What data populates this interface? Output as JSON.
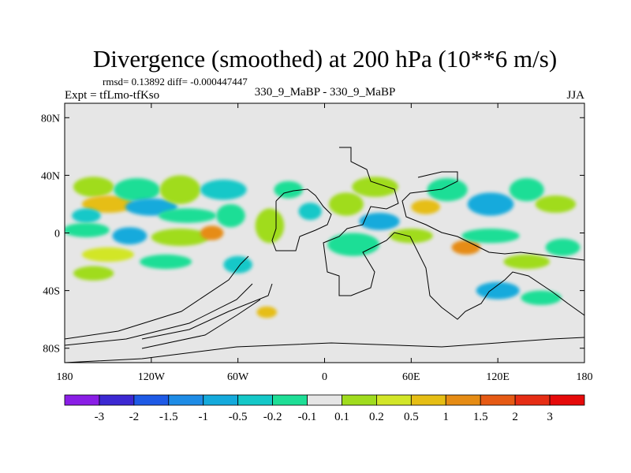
{
  "chart_data": {
    "type": "heatmap",
    "title": "Divergence (smoothed) at 200 hPa (10**6 m/s)",
    "stats": "rmsd= 0.13892 diff= -0.000447447",
    "experiment": "Expt = tfLmo-tfKso",
    "comparison": "330_9_MaBP - 330_9_MaBP",
    "season": "JJA",
    "x_ticks": [
      "180",
      "120W",
      "60W",
      "0",
      "60E",
      "120E",
      "180"
    ],
    "x_values": [
      -180,
      -120,
      -60,
      0,
      60,
      120,
      180
    ],
    "y_ticks": [
      "80N",
      "40N",
      "0",
      "40S",
      "80S"
    ],
    "y_values": [
      80,
      40,
      0,
      -40,
      -80
    ],
    "xlim": [
      -180,
      180
    ],
    "ylim": [
      -90,
      90
    ],
    "colorbar": {
      "labels": [
        "-3",
        "-2",
        "-1.5",
        "-1",
        "-0.5",
        "-0.2",
        "-0.1",
        "0.1",
        "0.2",
        "0.5",
        "1",
        "1.5",
        "2",
        "3"
      ],
      "colors": [
        "#8a1ee6",
        "#3c28d2",
        "#1e5ae6",
        "#1e8ce6",
        "#14aadc",
        "#14c8c8",
        "#1ede96",
        "#e6e6e6",
        "#a0dc1e",
        "#d2e628",
        "#e6be14",
        "#e68c14",
        "#e65a14",
        "#e62d14",
        "#e60a0a"
      ]
    },
    "blobs": [
      {
        "lon": -160,
        "lat": 32,
        "rlon": 14,
        "rlat": 7,
        "color": "#a0dc1e"
      },
      {
        "lon": -150,
        "lat": 20,
        "rlon": 18,
        "rlat": 6,
        "color": "#e6be14"
      },
      {
        "lon": -165,
        "lat": 12,
        "rlon": 10,
        "rlat": 5,
        "color": "#14c8c8"
      },
      {
        "lon": -130,
        "lat": 30,
        "rlon": 16,
        "rlat": 8,
        "color": "#1ede96"
      },
      {
        "lon": -120,
        "lat": 18,
        "rlon": 18,
        "rlat": 6,
        "color": "#14aadc"
      },
      {
        "lon": -100,
        "lat": 30,
        "rlon": 14,
        "rlat": 10,
        "color": "#a0dc1e"
      },
      {
        "lon": -95,
        "lat": 12,
        "rlon": 20,
        "rlat": 5,
        "color": "#1ede96"
      },
      {
        "lon": -165,
        "lat": 2,
        "rlon": 16,
        "rlat": 5,
        "color": "#1ede96"
      },
      {
        "lon": -135,
        "lat": -2,
        "rlon": 12,
        "rlat": 6,
        "color": "#14aadc"
      },
      {
        "lon": -100,
        "lat": -3,
        "rlon": 20,
        "rlat": 6,
        "color": "#a0dc1e"
      },
      {
        "lon": -78,
        "lat": 0,
        "rlon": 8,
        "rlat": 5,
        "color": "#e68c14"
      },
      {
        "lon": -150,
        "lat": -15,
        "rlon": 18,
        "rlat": 5,
        "color": "#d2e628"
      },
      {
        "lon": -110,
        "lat": -20,
        "rlon": 18,
        "rlat": 5,
        "color": "#1ede96"
      },
      {
        "lon": -160,
        "lat": -28,
        "rlon": 14,
        "rlat": 5,
        "color": "#a0dc1e"
      },
      {
        "lon": -70,
        "lat": 30,
        "rlon": 16,
        "rlat": 7,
        "color": "#14c8c8"
      },
      {
        "lon": -65,
        "lat": 12,
        "rlon": 10,
        "rlat": 8,
        "color": "#1ede96"
      },
      {
        "lon": -60,
        "lat": -22,
        "rlon": 10,
        "rlat": 6,
        "color": "#14c8c8"
      },
      {
        "lon": -38,
        "lat": 5,
        "rlon": 10,
        "rlat": 12,
        "color": "#a0dc1e"
      },
      {
        "lon": -25,
        "lat": 30,
        "rlon": 10,
        "rlat": 6,
        "color": "#1ede96"
      },
      {
        "lon": -40,
        "lat": -55,
        "rlon": 7,
        "rlat": 4,
        "color": "#e6be14"
      },
      {
        "lon": -10,
        "lat": 15,
        "rlon": 8,
        "rlat": 6,
        "color": "#14c8c8"
      },
      {
        "lon": 15,
        "lat": 20,
        "rlon": 12,
        "rlat": 8,
        "color": "#a0dc1e"
      },
      {
        "lon": 35,
        "lat": 32,
        "rlon": 16,
        "rlat": 7,
        "color": "#a0dc1e"
      },
      {
        "lon": 38,
        "lat": 8,
        "rlon": 14,
        "rlat": 6,
        "color": "#14aadc"
      },
      {
        "lon": 20,
        "lat": -8,
        "rlon": 18,
        "rlat": 8,
        "color": "#1ede96"
      },
      {
        "lon": 60,
        "lat": -2,
        "rlon": 15,
        "rlat": 5,
        "color": "#a0dc1e"
      },
      {
        "lon": 85,
        "lat": 30,
        "rlon": 14,
        "rlat": 8,
        "color": "#1ede96"
      },
      {
        "lon": 70,
        "lat": 18,
        "rlon": 10,
        "rlat": 5,
        "color": "#e6be14"
      },
      {
        "lon": 98,
        "lat": -10,
        "rlon": 10,
        "rlat": 5,
        "color": "#e68c14"
      },
      {
        "lon": 115,
        "lat": 20,
        "rlon": 16,
        "rlat": 8,
        "color": "#14aadc"
      },
      {
        "lon": 115,
        "lat": -2,
        "rlon": 20,
        "rlat": 5,
        "color": "#1ede96"
      },
      {
        "lon": 140,
        "lat": 30,
        "rlon": 12,
        "rlat": 8,
        "color": "#1ede96"
      },
      {
        "lon": 160,
        "lat": 20,
        "rlon": 14,
        "rlat": 6,
        "color": "#a0dc1e"
      },
      {
        "lon": 140,
        "lat": -20,
        "rlon": 16,
        "rlat": 5,
        "color": "#a0dc1e"
      },
      {
        "lon": 165,
        "lat": -10,
        "rlon": 12,
        "rlat": 6,
        "color": "#1ede96"
      },
      {
        "lon": 120,
        "lat": -40,
        "rlon": 15,
        "rlat": 6,
        "color": "#14aadc"
      },
      {
        "lon": 150,
        "lat": -45,
        "rlon": 14,
        "rlat": 5,
        "color": "#1ede96"
      }
    ]
  }
}
